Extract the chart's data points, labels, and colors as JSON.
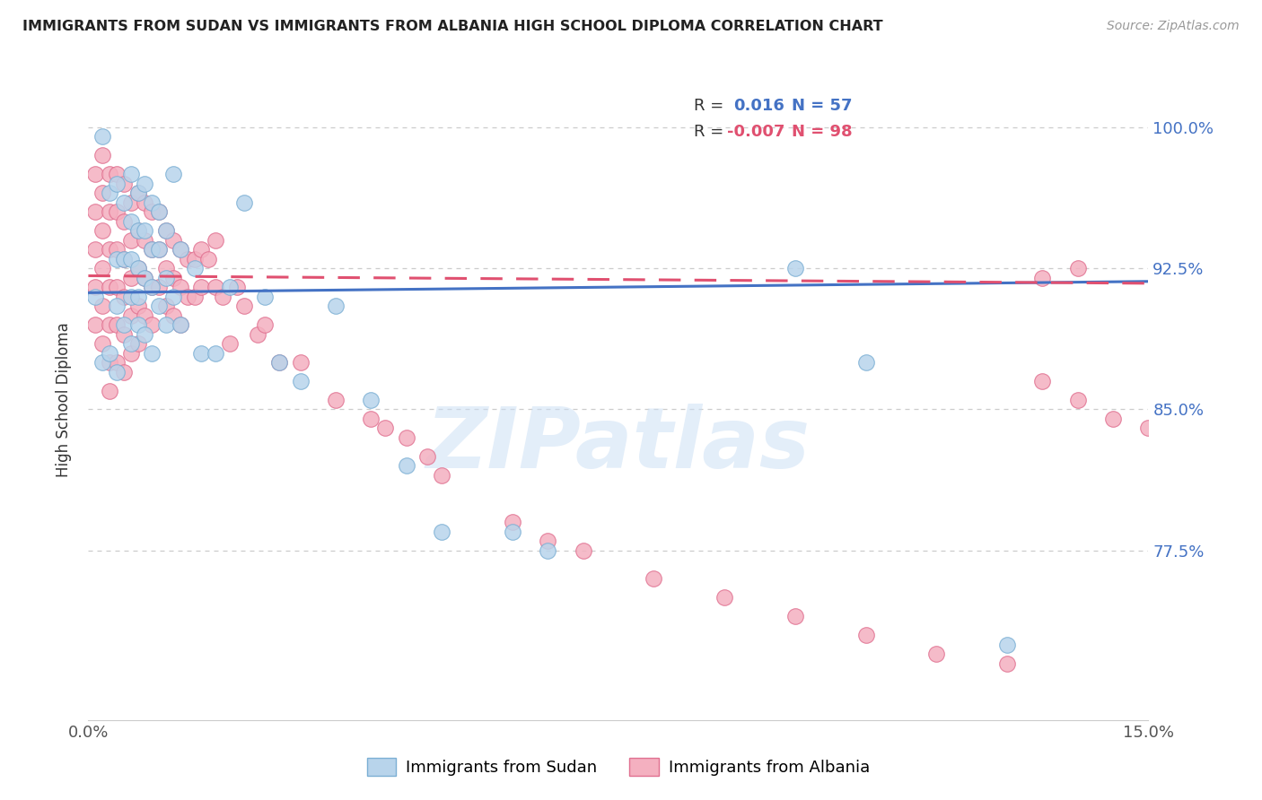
{
  "title": "IMMIGRANTS FROM SUDAN VS IMMIGRANTS FROM ALBANIA HIGH SCHOOL DIPLOMA CORRELATION CHART",
  "source": "Source: ZipAtlas.com",
  "ylabel": "High School Diploma",
  "yticks": [
    0.775,
    0.85,
    0.925,
    1.0
  ],
  "ytick_labels": [
    "77.5%",
    "85.0%",
    "92.5%",
    "100.0%"
  ],
  "xlim": [
    0.0,
    0.15
  ],
  "ylim": [
    0.685,
    1.025
  ],
  "watermark": "ZIPatlas",
  "sudan_color": "#b8d4eb",
  "sudan_edge": "#7bafd4",
  "albania_color": "#f4b0c0",
  "albania_edge": "#e07090",
  "trend_sudan_color": "#4472c4",
  "trend_albania_color": "#e05070",
  "sudan_points_x": [
    0.001,
    0.002,
    0.002,
    0.003,
    0.003,
    0.004,
    0.004,
    0.004,
    0.004,
    0.005,
    0.005,
    0.005,
    0.006,
    0.006,
    0.006,
    0.006,
    0.006,
    0.007,
    0.007,
    0.007,
    0.007,
    0.007,
    0.008,
    0.008,
    0.008,
    0.008,
    0.009,
    0.009,
    0.009,
    0.009,
    0.01,
    0.01,
    0.01,
    0.011,
    0.011,
    0.011,
    0.012,
    0.012,
    0.013,
    0.013,
    0.015,
    0.016,
    0.018,
    0.02,
    0.022,
    0.025,
    0.027,
    0.03,
    0.035,
    0.04,
    0.045,
    0.05,
    0.06,
    0.065,
    0.1,
    0.11,
    0.13
  ],
  "sudan_points_y": [
    0.91,
    0.995,
    0.875,
    0.965,
    0.88,
    0.97,
    0.93,
    0.905,
    0.87,
    0.96,
    0.93,
    0.895,
    0.975,
    0.95,
    0.93,
    0.91,
    0.885,
    0.965,
    0.945,
    0.925,
    0.91,
    0.895,
    0.97,
    0.945,
    0.92,
    0.89,
    0.96,
    0.935,
    0.915,
    0.88,
    0.955,
    0.935,
    0.905,
    0.945,
    0.92,
    0.895,
    0.975,
    0.91,
    0.935,
    0.895,
    0.925,
    0.88,
    0.88,
    0.915,
    0.96,
    0.91,
    0.875,
    0.865,
    0.905,
    0.855,
    0.82,
    0.785,
    0.785,
    0.775,
    0.925,
    0.875,
    0.725
  ],
  "albania_points_x": [
    0.001,
    0.001,
    0.001,
    0.001,
    0.001,
    0.002,
    0.002,
    0.002,
    0.002,
    0.002,
    0.002,
    0.003,
    0.003,
    0.003,
    0.003,
    0.003,
    0.003,
    0.003,
    0.004,
    0.004,
    0.004,
    0.004,
    0.004,
    0.004,
    0.005,
    0.005,
    0.005,
    0.005,
    0.005,
    0.005,
    0.006,
    0.006,
    0.006,
    0.006,
    0.006,
    0.007,
    0.007,
    0.007,
    0.007,
    0.007,
    0.008,
    0.008,
    0.008,
    0.008,
    0.009,
    0.009,
    0.009,
    0.009,
    0.01,
    0.01,
    0.01,
    0.011,
    0.011,
    0.011,
    0.012,
    0.012,
    0.012,
    0.013,
    0.013,
    0.013,
    0.014,
    0.014,
    0.015,
    0.015,
    0.016,
    0.016,
    0.017,
    0.018,
    0.018,
    0.019,
    0.02,
    0.021,
    0.022,
    0.024,
    0.025,
    0.027,
    0.03,
    0.035,
    0.04,
    0.042,
    0.045,
    0.048,
    0.05,
    0.06,
    0.065,
    0.07,
    0.08,
    0.09,
    0.1,
    0.11,
    0.12,
    0.13,
    0.135,
    0.14,
    0.145,
    0.15,
    0.14,
    0.135
  ],
  "albania_points_y": [
    0.975,
    0.955,
    0.935,
    0.915,
    0.895,
    0.985,
    0.965,
    0.945,
    0.925,
    0.905,
    0.885,
    0.975,
    0.955,
    0.935,
    0.915,
    0.895,
    0.875,
    0.86,
    0.975,
    0.955,
    0.935,
    0.915,
    0.895,
    0.875,
    0.97,
    0.95,
    0.93,
    0.91,
    0.89,
    0.87,
    0.96,
    0.94,
    0.92,
    0.9,
    0.88,
    0.965,
    0.945,
    0.925,
    0.905,
    0.885,
    0.96,
    0.94,
    0.92,
    0.9,
    0.955,
    0.935,
    0.915,
    0.895,
    0.955,
    0.935,
    0.915,
    0.945,
    0.925,
    0.905,
    0.94,
    0.92,
    0.9,
    0.935,
    0.915,
    0.895,
    0.93,
    0.91,
    0.93,
    0.91,
    0.935,
    0.915,
    0.93,
    0.94,
    0.915,
    0.91,
    0.885,
    0.915,
    0.905,
    0.89,
    0.895,
    0.875,
    0.875,
    0.855,
    0.845,
    0.84,
    0.835,
    0.825,
    0.815,
    0.79,
    0.78,
    0.775,
    0.76,
    0.75,
    0.74,
    0.73,
    0.72,
    0.715,
    0.865,
    0.855,
    0.845,
    0.84,
    0.925,
    0.92
  ],
  "sudan_trend_x": [
    0.0,
    0.15
  ],
  "sudan_trend_y": [
    0.912,
    0.918
  ],
  "albania_trend_x": [
    0.0,
    0.15
  ],
  "albania_trend_y": [
    0.921,
    0.917
  ]
}
